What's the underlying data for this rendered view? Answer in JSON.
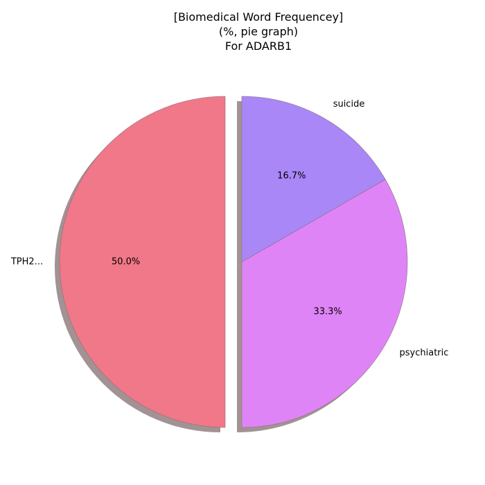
{
  "chart_data": {
    "type": "pie",
    "title": [
      "[Biomedical Word Frequencey]",
      "(%, pie graph)",
      "For ADARB1"
    ],
    "slices": [
      {
        "label": "TPH2...",
        "value": 50.0,
        "pct_label": "50.0%",
        "color": "#f07888",
        "exploded": true
      },
      {
        "label": "psychiatric",
        "value": 33.3,
        "pct_label": "33.3%",
        "color": "#df84f6",
        "exploded": false
      },
      {
        "label": "suicide",
        "value": 16.7,
        "pct_label": "16.7%",
        "color": "#a987f7",
        "exploded": false
      }
    ],
    "shadow": true,
    "shadow_color": "#a39294",
    "edge_color": "#8a6f7a"
  }
}
